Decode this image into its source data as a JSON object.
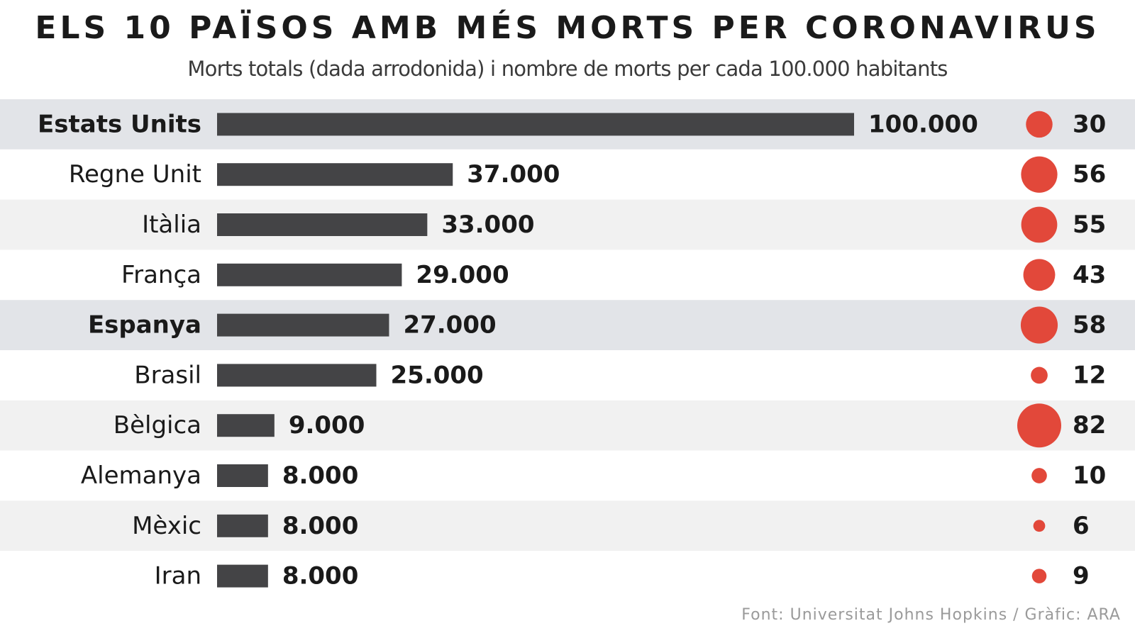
{
  "header": {
    "title": "ELS 10 PAÏSOS AMB MÉS MORTS PER CORONAVIRUS",
    "subtitle": "Morts totals (dada arrodonida) i nombre de morts per cada 100.000 habitants"
  },
  "source": "Font: Universitat Johns Hopkins / Gràfic: ARA",
  "colors": {
    "bar": "#444446",
    "dot": "#e2483a",
    "row_highlight": "#e2e4e8",
    "row_alt": "#f1f1f1",
    "row_plain": "#ffffff",
    "text": "#1a1a1a"
  },
  "chart_data": {
    "type": "bar",
    "orientation": "horizontal",
    "xlim": [
      0,
      100000
    ],
    "categories": [
      "Estats Units",
      "Regne Unit",
      "Itàlia",
      "França",
      "Espanya",
      "Brasil",
      "Bèlgica",
      "Alemanya",
      "Mèxic",
      "Iran"
    ],
    "highlighted": [
      "Estats Units",
      "Espanya"
    ],
    "series": [
      {
        "values": [
          100000,
          37000,
          33000,
          29000,
          27000,
          25000,
          9000,
          8000,
          8000,
          8000
        ],
        "labels": [
          "100.000",
          "37.000",
          "33.000",
          "29.000",
          "27.000",
          "25.000",
          "9.000",
          "8.000",
          "8.000",
          "8.000"
        ]
      },
      {
        "values": [
          30,
          56,
          55,
          43,
          58,
          12,
          82,
          10,
          6,
          9
        ],
        "labels": [
          "30",
          "56",
          "55",
          "43",
          "58",
          "12",
          "82",
          "10",
          "6",
          "9"
        ],
        "marker": "circle"
      }
    ]
  }
}
